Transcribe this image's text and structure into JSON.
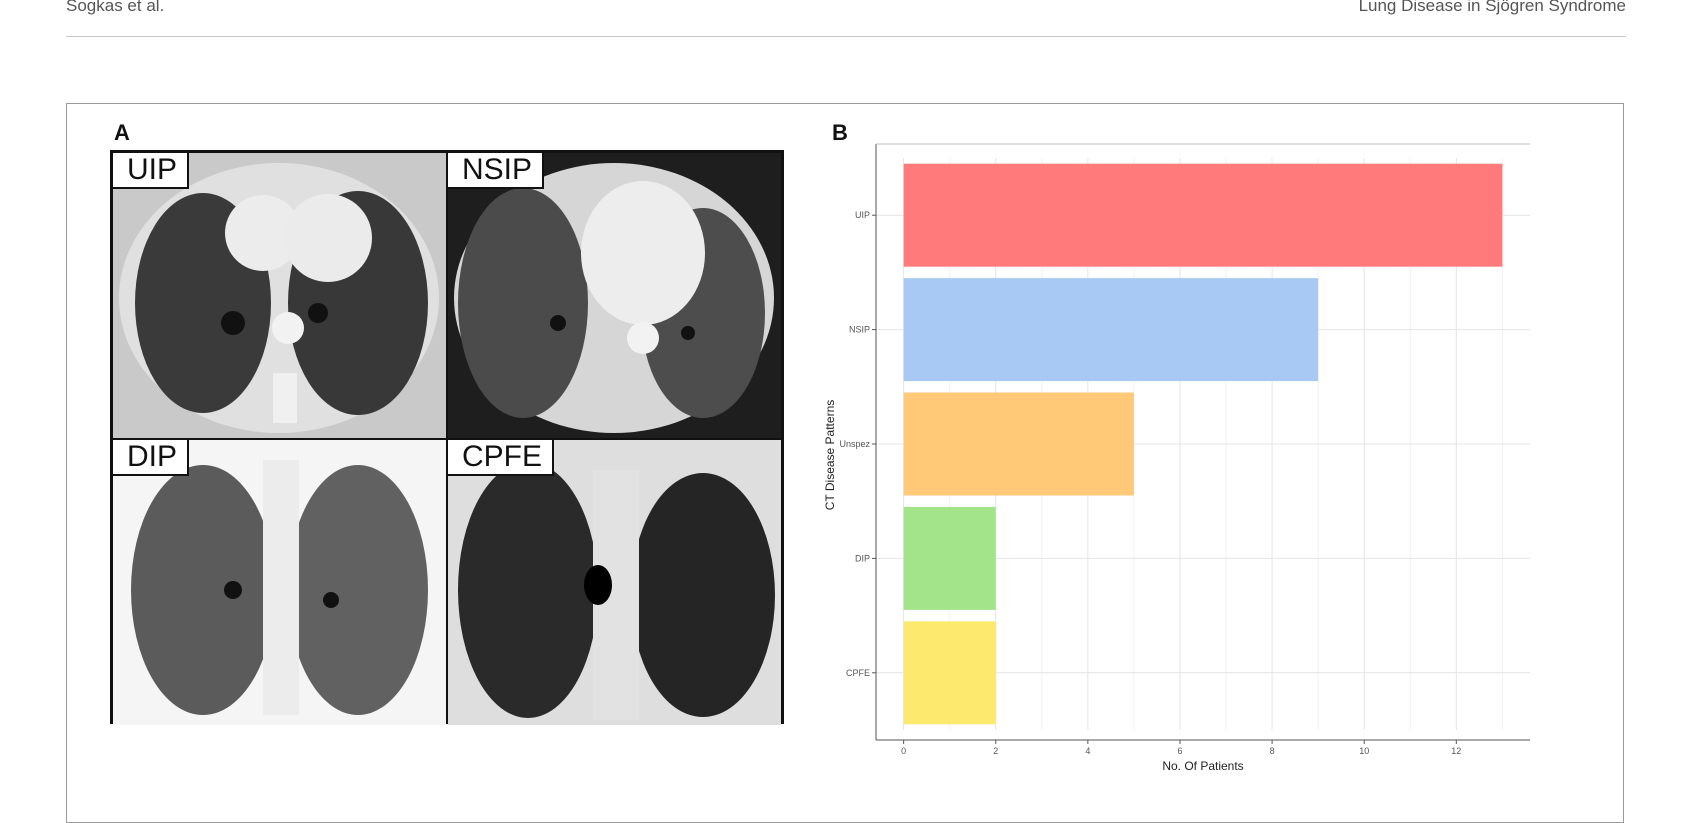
{
  "running_head": {
    "authors": "Sogkas et al.",
    "title": "Lung Disease in Sjögren Syndrome"
  },
  "panel_a": {
    "letter": "A",
    "tiles": [
      {
        "label": "UIP"
      },
      {
        "label": "NSIP"
      },
      {
        "label": "DIP"
      },
      {
        "label": "CPFE"
      }
    ]
  },
  "panel_b": {
    "letter": "B"
  },
  "chart_data": {
    "type": "bar",
    "orientation": "horizontal",
    "categories": [
      "UIP",
      "NSIP",
      "Unspez",
      "DIP",
      "CPFE"
    ],
    "values": [
      13,
      9,
      5,
      2,
      2
    ],
    "colors": [
      "#ff7b7b",
      "#a8c9f4",
      "#ffc978",
      "#a3e48a",
      "#fde96e"
    ],
    "xlabel": "No. Of Patients",
    "ylabel": "CT Disease Patterns",
    "xticks": [
      0,
      2,
      4,
      6,
      8,
      10,
      12
    ],
    "xlim": [
      -0.6,
      13.6
    ],
    "grid": true
  }
}
